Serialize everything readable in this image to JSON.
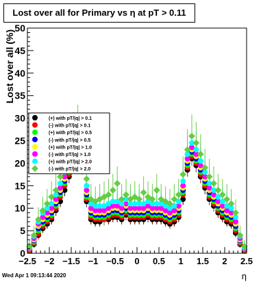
{
  "chart_data": {
    "type": "scatter",
    "title": "Lost over all for Primary vs   η at pT > 0.11",
    "xlabel": "η",
    "ylabel": "Lost over all (%)",
    "xlim": [
      -2.5,
      2.5
    ],
    "ylim": [
      0,
      50
    ],
    "xticks": [
      "−2.5",
      "−2",
      "−1.5",
      "−1",
      "−0.5",
      "0",
      "0.5",
      "1",
      "1.5",
      "2",
      "2.5"
    ],
    "xtick_values": [
      -2.5,
      -2,
      -1.5,
      -1,
      -0.5,
      0,
      0.5,
      1,
      1.5,
      2,
      2.5
    ],
    "yticks": [
      "0",
      "5",
      "10",
      "15",
      "20",
      "25",
      "30",
      "35",
      "40",
      "45",
      "50"
    ],
    "ytick_values": [
      0,
      5,
      10,
      15,
      20,
      25,
      30,
      35,
      40,
      45,
      50
    ],
    "grid": false,
    "legend_position": "middle-left",
    "x": [
      -2.45,
      -2.35,
      -2.25,
      -2.15,
      -2.05,
      -1.95,
      -1.85,
      -1.75,
      -1.65,
      -1.55,
      -1.45,
      -1.35,
      -1.25,
      -1.15,
      -1.05,
      -0.95,
      -0.85,
      -0.75,
      -0.65,
      -0.55,
      -0.45,
      -0.35,
      -0.25,
      -0.15,
      -0.05,
      0.05,
      0.15,
      0.25,
      0.35,
      0.45,
      0.55,
      0.65,
      0.75,
      0.85,
      0.95,
      1.05,
      1.15,
      1.25,
      1.35,
      1.45,
      1.55,
      1.65,
      1.75,
      1.85,
      1.95,
      2.05,
      2.15,
      2.25,
      2.35,
      2.45
    ],
    "series": [
      {
        "name": "(+) with pT/|q| > 0.1",
        "color": "#000000",
        "values": [
          0.5,
          2.0,
          4.0,
          5.5,
          6.5,
          7.5,
          9.5,
          11.5,
          14.0,
          17.0,
          20.5,
          22.5,
          19.0,
          11.5,
          7.5,
          7.0,
          7.0,
          7.5,
          7.5,
          8.0,
          8.0,
          7.5,
          8.5,
          7.5,
          7.5,
          7.5,
          7.5,
          8.0,
          7.5,
          7.5,
          7.5,
          7.0,
          6.5,
          7.0,
          8.0,
          12.0,
          18.5,
          21.0,
          19.5,
          17.0,
          14.5,
          12.0,
          10.5,
          9.0,
          8.0,
          7.0,
          6.5,
          4.5,
          2.0,
          0.5
        ]
      },
      {
        "name": "(-) with pT/|q| > 0.1",
        "color": "#ff0000",
        "values": [
          0.6,
          2.2,
          4.3,
          6.0,
          7.0,
          8.0,
          10.0,
          12.5,
          15.0,
          17.5,
          21.0,
          23.0,
          19.5,
          12.0,
          8.0,
          7.5,
          7.5,
          7.5,
          8.0,
          8.5,
          8.5,
          8.0,
          9.0,
          8.0,
          8.0,
          8.0,
          8.0,
          8.5,
          8.0,
          8.0,
          8.0,
          7.5,
          7.0,
          7.5,
          8.5,
          13.0,
          19.0,
          21.5,
          20.0,
          17.5,
          15.0,
          12.5,
          11.0,
          9.5,
          8.5,
          7.5,
          7.0,
          5.0,
          2.2,
          0.6
        ]
      },
      {
        "name": "(+) with pT/|q| > 0.5",
        "color": "#00ff00",
        "values": [
          0.8,
          2.5,
          5.0,
          6.5,
          7.5,
          8.5,
          10.5,
          13.0,
          15.5,
          18.0,
          21.5,
          23.5,
          20.0,
          12.5,
          8.5,
          8.0,
          8.0,
          8.0,
          8.5,
          9.0,
          9.0,
          8.5,
          9.5,
          8.5,
          8.5,
          8.5,
          8.5,
          9.0,
          8.5,
          8.5,
          8.5,
          8.0,
          7.5,
          8.0,
          9.0,
          13.5,
          19.5,
          22.0,
          20.5,
          18.0,
          15.5,
          13.0,
          11.5,
          10.0,
          9.0,
          8.0,
          7.5,
          5.5,
          2.5,
          0.8
        ]
      },
      {
        "name": "(-) with pT/|q| > 0.5",
        "color": "#0000ff",
        "values": [
          0.9,
          2.8,
          5.5,
          7.0,
          8.0,
          9.0,
          11.0,
          13.5,
          16.0,
          18.5,
          22.0,
          24.0,
          20.5,
          13.0,
          9.0,
          8.5,
          8.5,
          8.5,
          9.0,
          9.5,
          9.5,
          9.0,
          10.0,
          9.0,
          9.0,
          9.0,
          9.0,
          9.5,
          9.0,
          9.0,
          9.0,
          8.5,
          8.0,
          8.5,
          9.5,
          14.0,
          20.0,
          22.5,
          21.0,
          18.5,
          16.0,
          13.5,
          12.0,
          10.5,
          9.5,
          8.5,
          8.0,
          6.0,
          2.8,
          0.9
        ]
      },
      {
        "name": "(+) with pT/|q| > 1.0",
        "color": "#ffff00",
        "values": [
          1.0,
          3.0,
          6.0,
          7.5,
          8.5,
          9.5,
          11.5,
          14.0,
          16.5,
          19.0,
          22.5,
          24.5,
          21.0,
          13.5,
          9.5,
          9.0,
          9.0,
          9.0,
          9.5,
          10.0,
          10.0,
          9.5,
          10.5,
          9.5,
          9.5,
          9.5,
          9.5,
          10.0,
          9.5,
          9.5,
          9.5,
          9.0,
          8.5,
          9.0,
          10.0,
          14.5,
          20.5,
          23.0,
          21.5,
          19.0,
          16.5,
          14.0,
          12.5,
          11.0,
          10.0,
          9.0,
          8.5,
          6.5,
          3.0,
          1.0
        ]
      },
      {
        "name": "(-) with pT/|q| > 1.0",
        "color": "#ff00ff",
        "values": [
          1.1,
          3.3,
          6.5,
          8.0,
          9.0,
          10.0,
          12.0,
          14.5,
          17.0,
          19.5,
          23.0,
          25.0,
          21.5,
          14.0,
          10.0,
          9.5,
          9.5,
          9.5,
          10.0,
          10.5,
          10.5,
          10.0,
          11.0,
          10.0,
          10.0,
          10.0,
          10.0,
          10.5,
          10.0,
          10.0,
          10.0,
          9.5,
          9.0,
          9.5,
          10.5,
          15.0,
          21.0,
          23.5,
          22.0,
          19.5,
          17.0,
          14.5,
          13.0,
          11.5,
          10.5,
          9.5,
          9.0,
          7.0,
          3.3,
          1.1
        ]
      },
      {
        "name": "(+) with pT/|q| > 2.0",
        "color": "#00ffff",
        "values": [
          1.3,
          3.8,
          7.0,
          9.0,
          10.0,
          11.0,
          13.0,
          15.5,
          18.0,
          20.5,
          24.0,
          26.0,
          22.5,
          15.0,
          11.0,
          10.5,
          10.5,
          10.5,
          11.0,
          11.5,
          11.5,
          11.0,
          12.0,
          11.0,
          11.0,
          11.0,
          11.0,
          11.5,
          11.0,
          11.0,
          11.0,
          10.5,
          10.0,
          10.5,
          11.5,
          16.0,
          22.0,
          24.5,
          23.0,
          20.5,
          18.0,
          15.5,
          14.0,
          12.5,
          11.5,
          10.5,
          10.0,
          8.0,
          3.8,
          1.3
        ]
      },
      {
        "name": "(-) with pT/|q| > 2.0",
        "color": "#66cc44",
        "values": [
          1.5,
          4.0,
          7.5,
          9.5,
          11.0,
          12.5,
          14.0,
          17.0,
          19.5,
          22.0,
          26.5,
          28.0,
          24.0,
          16.5,
          12.0,
          11.5,
          12.0,
          12.5,
          13.0,
          14.0,
          15.5,
          12.0,
          13.0,
          12.0,
          12.5,
          12.0,
          13.5,
          12.5,
          12.0,
          14.0,
          12.0,
          11.5,
          11.0,
          12.0,
          13.0,
          17.5,
          23.0,
          26.0,
          24.5,
          22.0,
          19.0,
          17.0,
          15.5,
          14.0,
          13.0,
          12.0,
          11.0,
          9.0,
          4.0,
          1.5
        ]
      }
    ]
  },
  "footer": {
    "timestamp": "Wed Apr  1 09:13:44 2020"
  }
}
